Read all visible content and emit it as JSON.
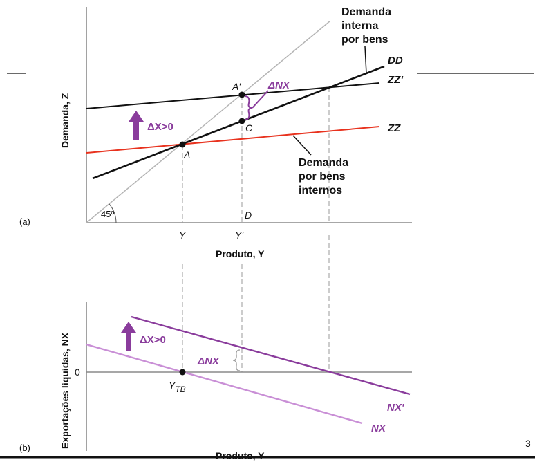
{
  "panel_a": {
    "tag": "(a)",
    "y_axis_label": "Demanda, Z",
    "x_axis_label": "Produto, Y",
    "angle_label": "45º",
    "curves": {
      "dd": "DD",
      "zz_prime": "ZZ'",
      "zz": "ZZ"
    },
    "points": {
      "a": "A",
      "a_prime": "A'",
      "c": "C",
      "d": "D"
    },
    "x_ticks": {
      "y": "Y",
      "y_prime": "Y'"
    },
    "shift_label": "ΔX>0",
    "delta_nx_label": "ΔNX",
    "annotation_domestic_demand": [
      "Demanda",
      "interna",
      "por bens"
    ],
    "annotation_demand_domestic_goods": [
      "Demanda",
      "por bens",
      "internos"
    ]
  },
  "panel_b": {
    "tag": "(b)",
    "y_axis_label": "Exportações líquidas, NX",
    "x_axis_label": "Produto, Y",
    "zero_tick": "0",
    "curves": {
      "nx_prime": "NX'",
      "nx": "NX"
    },
    "point_ytb_main": "Y",
    "point_ytb_sub": "TB",
    "shift_label": "ΔX>0",
    "delta_nx_label": "ΔNX"
  },
  "slide_number": "3",
  "colors": {
    "purple": "#8a3c9c",
    "light_purple": "#c98fd6",
    "red": "#e8321e",
    "black": "#111111",
    "gray": "#8a8a8a"
  }
}
